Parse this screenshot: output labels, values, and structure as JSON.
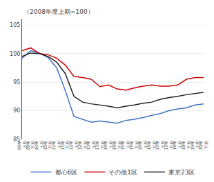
{
  "chart_data": {
    "type": "line",
    "ylabel": "（2008年度上期=100）",
    "categories": [
      "09年\n上期",
      "09年\n下期",
      "10年\n上期",
      "10年\n下期",
      "11年\n上期",
      "11年\n下期",
      "12年\n上期",
      "12年\n下期",
      "13年\n上期",
      "13年\n下期",
      "14年\n上期",
      "14年\n下期",
      "15年\n上期",
      "15年\n下期",
      "16年\n上期",
      "16年\n下期",
      "17年\n上期",
      "17年\n下期",
      "18年\n上期",
      "18年\n下期",
      "19年\n上期",
      "19年\n下期"
    ],
    "series": [
      {
        "name": "都心6区",
        "color": "#4472C4",
        "values": [
          99.2,
          100.5,
          100.1,
          99.3,
          97.5,
          93.5,
          89.0,
          88.5,
          88.0,
          88.2,
          88.0,
          87.8,
          88.3,
          88.5,
          88.8,
          89.2,
          89.5,
          90.0,
          90.3,
          90.5,
          91.0,
          91.2
        ]
      },
      {
        "name": "その他1区",
        "color": "#CC0000",
        "values": [
          100.5,
          101.0,
          100.0,
          99.8,
          99.2,
          98.0,
          96.0,
          95.8,
          95.5,
          94.2,
          94.5,
          93.8,
          93.6,
          94.0,
          94.3,
          94.5,
          94.3,
          94.3,
          94.5,
          95.5,
          95.8,
          95.8
        ]
      },
      {
        "name": "東京23区",
        "color": "#222222",
        "values": [
          99.5,
          100.1,
          100.0,
          99.5,
          98.5,
          96.5,
          92.5,
          91.5,
          91.2,
          91.0,
          90.8,
          90.5,
          90.8,
          91.0,
          91.3,
          91.5,
          92.0,
          92.3,
          92.5,
          92.8,
          93.0,
          93.2
        ]
      }
    ],
    "ylim": [
      85,
      106
    ],
    "yticks": [
      85,
      90,
      95,
      100,
      105
    ],
    "grid": true,
    "legend": "bottom"
  }
}
